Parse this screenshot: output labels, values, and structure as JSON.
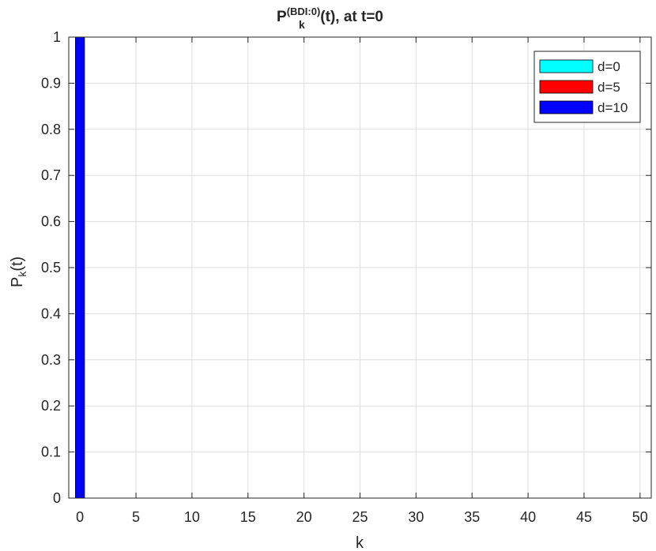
{
  "chart_data": {
    "type": "bar",
    "title": {
      "main": "P",
      "superscript": "(BDI:0)",
      "subscript": "k",
      "suffix": "(t), at t=0"
    },
    "xlabel": "k",
    "ylabel": {
      "main": "P",
      "subscript": "k",
      "suffix": "(t)"
    },
    "xlim": [
      -1,
      51
    ],
    "ylim": [
      0,
      1
    ],
    "xticks": [
      "0",
      "5",
      "10",
      "15",
      "20",
      "25",
      "30",
      "35",
      "40",
      "45",
      "50"
    ],
    "yticks": [
      "0",
      "0.1",
      "0.2",
      "0.3",
      "0.4",
      "0.5",
      "0.6",
      "0.7",
      "0.8",
      "0.9",
      "1"
    ],
    "grid": true,
    "legend_position": "top-right",
    "series": [
      {
        "name": "d=0",
        "color": "#00ffff",
        "x": [
          0
        ],
        "values": [
          1
        ]
      },
      {
        "name": "d=5",
        "color": "#ff0000",
        "x": [
          0
        ],
        "values": [
          1
        ]
      },
      {
        "name": "d=10",
        "color": "#0000ff",
        "x": [
          0
        ],
        "values": [
          1
        ]
      }
    ]
  }
}
